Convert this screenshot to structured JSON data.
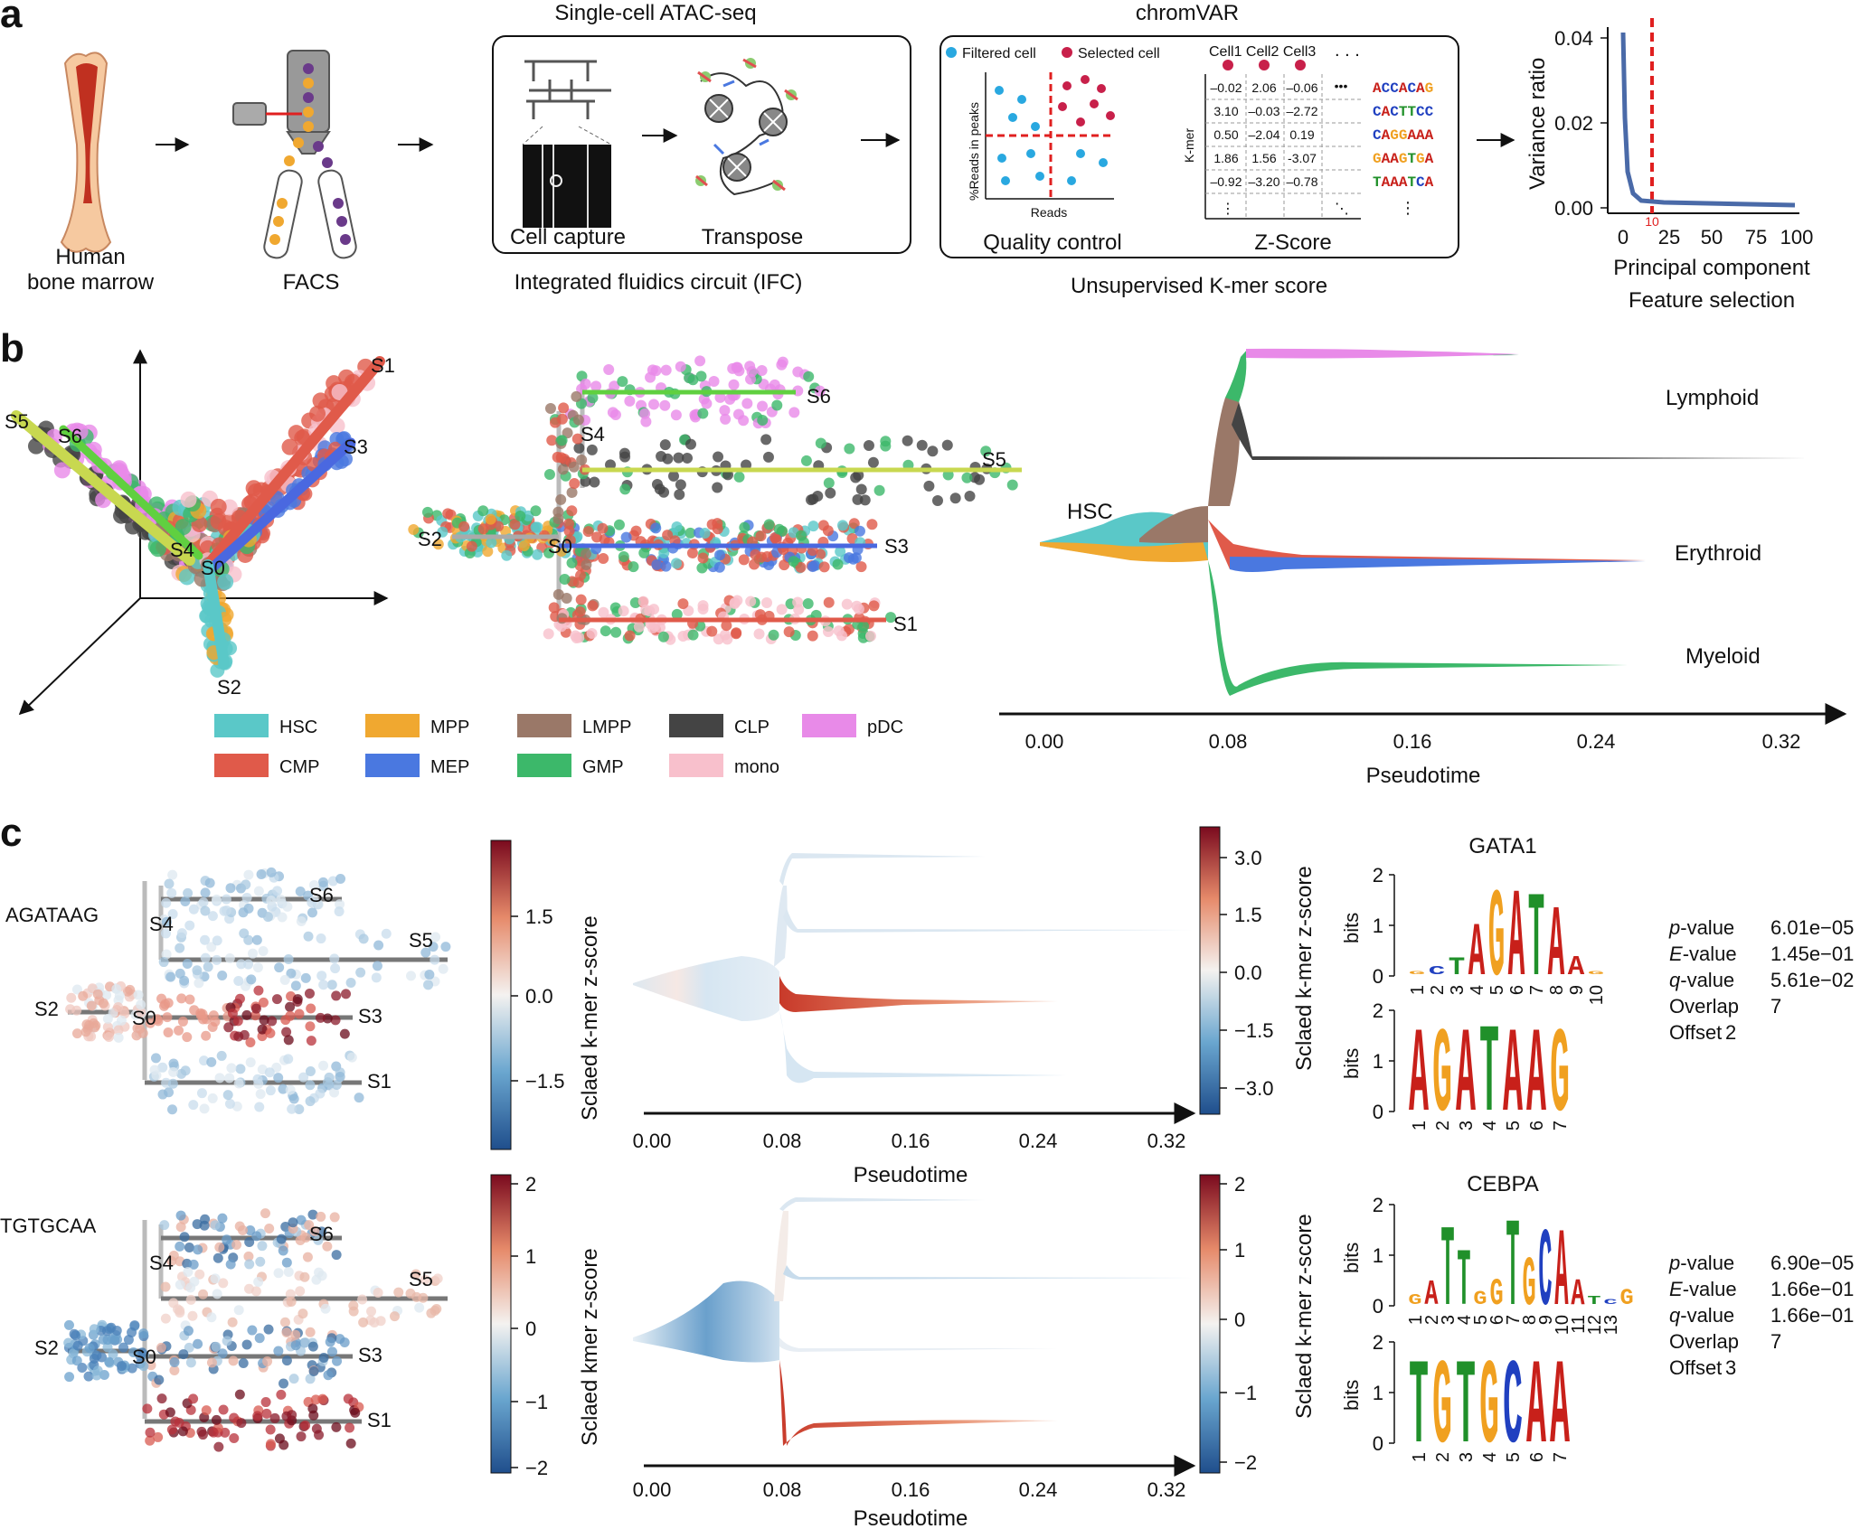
{
  "panel_labels": {
    "a": "a",
    "b": "b",
    "c": "c"
  },
  "panel_a": {
    "bone_label_line1": "Human",
    "bone_label_line2": "bone marrow",
    "facs_label": "FACS",
    "atac_title": "Single-cell ATAC-seq",
    "cell_capture": "Cell capture",
    "transpose": "Transpose",
    "ifc_label": "Integrated fluidics circuit (IFC)",
    "chromvar_title": "chromVAR",
    "legend_filtered": "Filtered cell",
    "legend_selected": "Selected cell",
    "qc_ylabel": "%Reads in peaks",
    "qc_xlabel": "Reads",
    "qc_label": "Quality control",
    "zscore_cols": "Cell1 Cell2 Cell3",
    "zscore_dots": ". . .",
    "kmer_axis": "K-mer",
    "zscore_label": "Z-Score",
    "zscore_rows": [
      [
        "–0.02",
        "2.06",
        "–0.06"
      ],
      [
        "3.10",
        "–0.03",
        "–2.72"
      ],
      [
        "0.50",
        "–2.04",
        "0.19"
      ],
      [
        "1.86",
        "1.56",
        "-3.07"
      ],
      [
        "–0.92",
        "–3.20",
        "–0.78"
      ]
    ],
    "kmers": [
      "ACCACAG",
      "CACTTCC",
      "CAGGAAA",
      "GAAGTGA",
      "TAAATCA"
    ],
    "unsupervised_label": "Unsupervised K-mer score",
    "variance_ylabel": "Variance ratio",
    "variance_xlabel": "Principal component",
    "feature_selection": "Feature selection",
    "variance_yticks": [
      "0.04",
      "0.02",
      "0.00"
    ],
    "variance_xticks": [
      "0",
      "25",
      "50",
      "75",
      "100"
    ],
    "variance_xtick_extra": "10"
  },
  "panel_b": {
    "branches_3d": [
      "S1",
      "S3",
      "S5",
      "S6",
      "S4",
      "S0",
      "S2"
    ],
    "branches_2d": [
      "S6",
      "S4",
      "S5",
      "S2",
      "S0",
      "S3",
      "S1"
    ],
    "legend": [
      {
        "label": "HSC",
        "color": "#5ac8c8"
      },
      {
        "label": "MPP",
        "color": "#f0a830"
      },
      {
        "label": "LMPP",
        "color": "#9a7868"
      },
      {
        "label": "CLP",
        "color": "#444444"
      },
      {
        "label": "pDC",
        "color": "#e88ae8"
      },
      {
        "label": "CMP",
        "color": "#e05a4a"
      },
      {
        "label": "MEP",
        "color": "#4a78e0"
      },
      {
        "label": "GMP",
        "color": "#3cb86a"
      },
      {
        "label": "mono",
        "color": "#f8c0cc"
      }
    ],
    "stream": {
      "hsc_label": "HSC",
      "lymphoid": "Lymphoid",
      "erythroid": "Erythroid",
      "myeloid": "Myeloid",
      "xticks": [
        "0.00",
        "0.08",
        "0.16",
        "0.24",
        "0.32"
      ],
      "xlabel": "Pseudotime"
    }
  },
  "panel_c": {
    "kmer1": "AGATAAG",
    "kmer2": "TGTGCAA",
    "tree_labels": [
      "S6",
      "S4",
      "S5",
      "S2",
      "S0",
      "S3",
      "S1"
    ],
    "cbar1_ticks": [
      "1.5",
      "0.0",
      "−1.5"
    ],
    "cbar2_ticks": [
      "3.0",
      "1.5",
      "0.0",
      "−1.5",
      "−3.0"
    ],
    "cbar3_ticks": [
      "2",
      "1",
      "0",
      "−1",
      "−2"
    ],
    "cbar4_ticks": [
      "2",
      "1",
      "0",
      "−1",
      "−2"
    ],
    "ylabel1": "Sclaed k-mer z-score",
    "ylabel2": "Sclaed k-mer z-score",
    "ylabel3": "Sclaed kmer z-score",
    "ylabel4": "Sclaed k-mer z-score",
    "xticks": [
      "0.00",
      "0.08",
      "0.16",
      "0.24",
      "0.32"
    ],
    "xlabel": "Pseudotime",
    "motif1": {
      "name": "GATA1",
      "bits_label": "bits",
      "yticks": [
        "2",
        "1",
        "0"
      ],
      "positions": "1 2 3 4 5 6 7 8 9 10",
      "query_positions": "1 2 3 4 5 6 7",
      "stats": [
        {
          "label": "p-value",
          "value": "6.01e−05"
        },
        {
          "label": "E-value",
          "value": "1.45e−01"
        },
        {
          "label": "q-value",
          "value": "5.61e−02"
        },
        {
          "label": "Overlap",
          "value": "7"
        },
        {
          "label": "Offset",
          "value": "2"
        }
      ]
    },
    "motif2": {
      "name": "CEBPA",
      "bits_label": "bits",
      "yticks": [
        "2",
        "1",
        "0"
      ],
      "positions": "1 2 3 4 5 6 7 8 9 10 11 12 13",
      "query_positions": "1 2 3 4 5 6 7",
      "stats": [
        {
          "label": "p-value",
          "value": "6.90e−05"
        },
        {
          "label": "E-value",
          "value": "1.66e−01"
        },
        {
          "label": "q-value",
          "value": "1.66e−01"
        },
        {
          "label": "Overlap",
          "value": "7"
        },
        {
          "label": "Offset",
          "value": "3"
        }
      ]
    }
  }
}
